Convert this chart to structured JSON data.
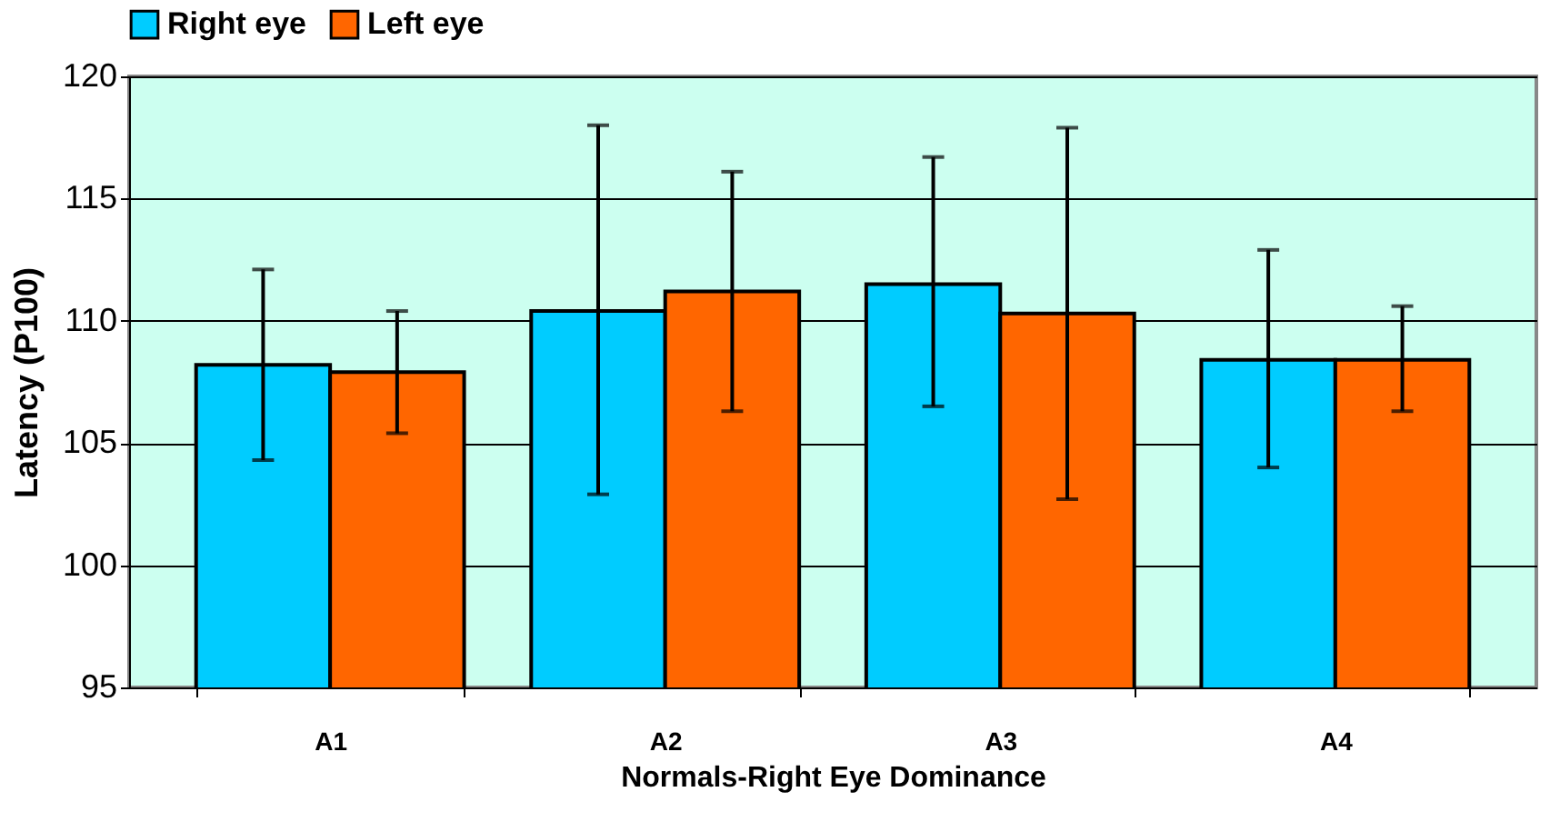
{
  "chart_data": {
    "type": "bar",
    "xlabel": "Normals-Right Eye Dominance",
    "ylabel": "Latency (P100)",
    "categories": [
      "A1",
      "A2",
      "A3",
      "A4"
    ],
    "series": [
      {
        "name": "Right eye",
        "color": "#00ccff",
        "values": [
          108.2,
          110.4,
          111.5,
          108.4
        ],
        "errors": [
          [
            104.3,
            112.1
          ],
          [
            102.9,
            118.0
          ],
          [
            106.5,
            116.7
          ],
          [
            104.0,
            112.9
          ]
        ]
      },
      {
        "name": "Left eye",
        "color": "#ff6600",
        "values": [
          107.9,
          111.2,
          110.3,
          108.4
        ],
        "errors": [
          [
            105.4,
            110.4
          ],
          [
            106.3,
            116.1
          ],
          [
            102.7,
            117.9
          ],
          [
            106.3,
            110.6
          ]
        ]
      }
    ],
    "ylim": [
      95,
      120
    ],
    "yticks": [
      95,
      100,
      105,
      110,
      115,
      120
    ],
    "grid": "y",
    "legend": "top"
  }
}
